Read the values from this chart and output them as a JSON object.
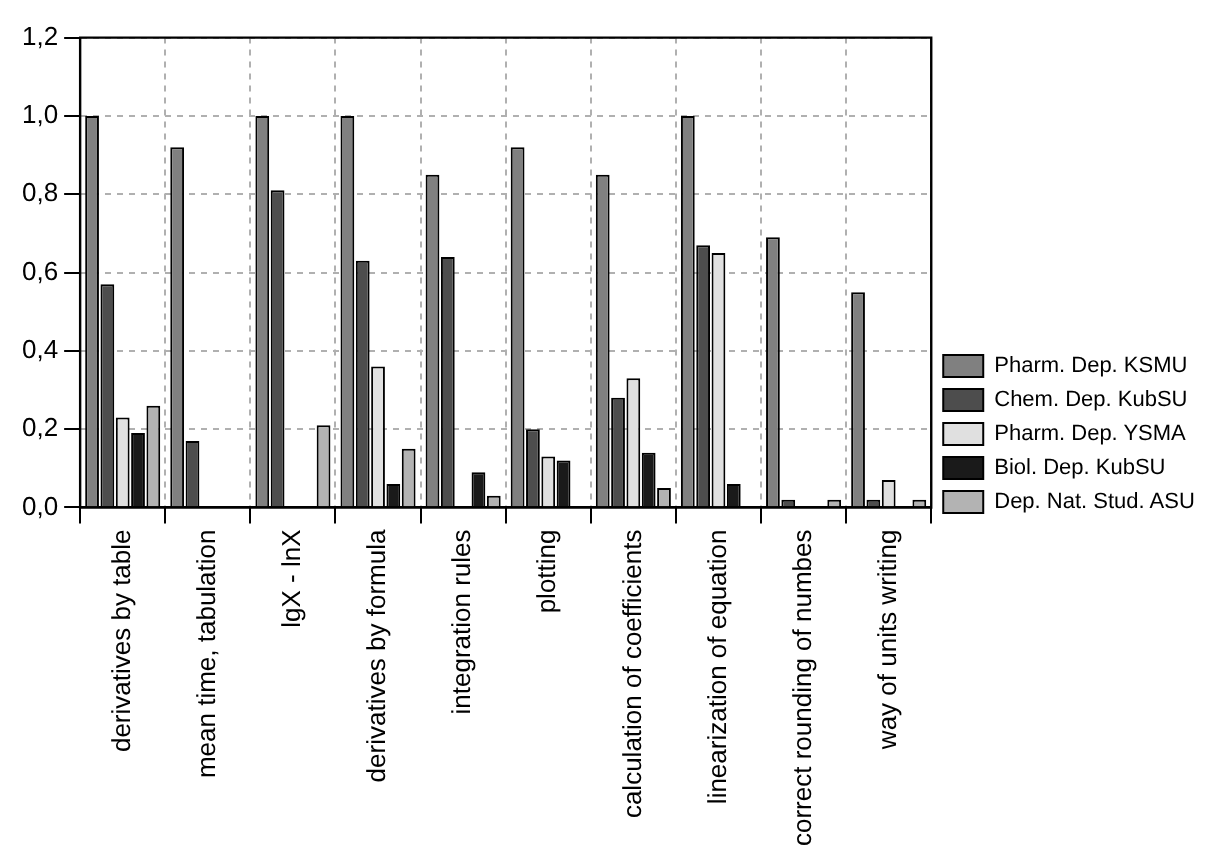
{
  "chart_data": {
    "type": "bar",
    "categories": [
      "derivatives by table",
      "mean time, tabulation",
      "lgX - lnX",
      "derivatives by formula",
      "integration rules",
      "plotting",
      "calculation of coefficients",
      "linearization of equation",
      "correct rounding of numbes",
      "way of units writing"
    ],
    "series": [
      {
        "name": "Pharm. Dep. KSMU",
        "color": "#808080",
        "values": [
          1.0,
          0.92,
          1.0,
          1.0,
          0.85,
          0.92,
          0.85,
          1.0,
          0.69,
          0.55
        ]
      },
      {
        "name": "Chem. Dep. KubSU",
        "color": "#4d4d4d",
        "values": [
          0.57,
          0.17,
          0.81,
          0.63,
          0.64,
          0.2,
          0.28,
          0.67,
          0.02,
          0.02
        ]
      },
      {
        "name": "Pharm. Dep. YSMA",
        "color": "#e0e0e0",
        "values": [
          0.23,
          0,
          0,
          0.36,
          0,
          0.13,
          0.33,
          0.65,
          0,
          0.07
        ]
      },
      {
        "name": "Biol. Dep. KubSU",
        "color": "#1a1a1a",
        "values": [
          0.19,
          0,
          0,
          0.06,
          0.09,
          0.12,
          0.14,
          0.06,
          0,
          0
        ]
      },
      {
        "name": "Dep. Nat. Stud. ASU",
        "color": "#b3b3b3",
        "values": [
          0.26,
          0,
          0.21,
          0.15,
          0.03,
          0,
          0.05,
          0,
          0.02,
          0.02
        ]
      }
    ],
    "ylim": [
      0,
      1.2
    ],
    "yticks": [
      {
        "value": 0,
        "label": "0,0"
      },
      {
        "value": 0.2,
        "label": "0,2"
      },
      {
        "value": 0.4,
        "label": "0,4"
      },
      {
        "value": 0.6,
        "label": "0,6"
      },
      {
        "value": 0.8,
        "label": "0,8"
      },
      {
        "value": 1.0,
        "label": "1,0"
      },
      {
        "value": 1.2,
        "label": "1,2"
      }
    ],
    "grid": true,
    "legend": "right"
  }
}
